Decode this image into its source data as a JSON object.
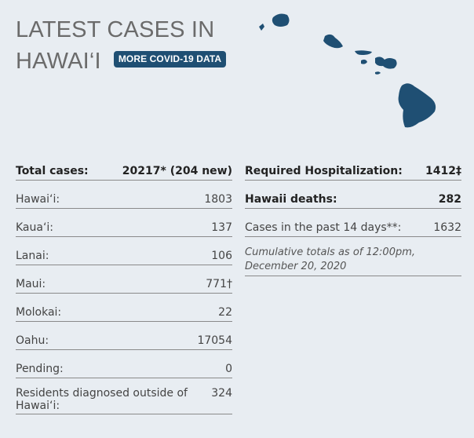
{
  "header": {
    "title_line1": "LATEST CASES IN",
    "title_line2": "HAWAI‘I",
    "more_button": "MORE COVID-19 DATA"
  },
  "colors": {
    "island": "#1f4f73",
    "background": "#e8edf2",
    "badge": "#1f4f73"
  },
  "left_rows": [
    {
      "label": "Total cases:",
      "value": "20217* (204 new)"
    },
    {
      "label": "Hawai‘i:",
      "value": "1803"
    },
    {
      "label": "Kaua‘i:",
      "value": "137"
    },
    {
      "label": "Lanai:",
      "value": "106"
    },
    {
      "label": "Maui:",
      "value": "771†"
    },
    {
      "label": "Molokai:",
      "value": "22"
    },
    {
      "label": "Oahu:",
      "value": "17054"
    },
    {
      "label": "Pending:",
      "value": "0"
    },
    {
      "label": "Residents diagnosed outside of Hawai‘i:",
      "value": "324"
    }
  ],
  "right_rows": [
    {
      "label": "Required Hospitalization:",
      "value": "1412‡"
    },
    {
      "label": "Hawaii deaths:",
      "value": "282"
    },
    {
      "label": "Cases in the past 14 days**:",
      "value": "1632"
    }
  ],
  "note": "Cumulative totals as of 12:00pm, December 20, 2020"
}
